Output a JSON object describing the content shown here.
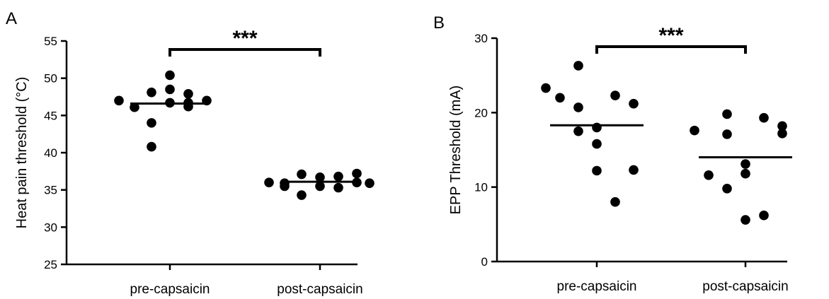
{
  "chart_data": [
    {
      "panel": "A",
      "type": "scatter",
      "ylabel": "Heat pain threshold (°C)",
      "ylim": [
        25,
        55
      ],
      "yticks": [
        25,
        30,
        35,
        40,
        45,
        50,
        55
      ],
      "categories": [
        "pre-capsaicin",
        "post-capsaicin"
      ],
      "series": [
        {
          "category": "pre-capsaicin",
          "mean": 46.6,
          "values": [
            47.0,
            46.1,
            48.1,
            46.7,
            44.0,
            40.8,
            50.4,
            48.5,
            46.7,
            47.9,
            46.2,
            47.0
          ]
        },
        {
          "category": "post-capsaicin",
          "mean": 36.1,
          "values": [
            36.0,
            35.9,
            35.5,
            37.1,
            34.3,
            36.7,
            35.5,
            36.8,
            35.3,
            36.0,
            37.2,
            35.9
          ]
        }
      ],
      "significance": "***",
      "grid": false
    },
    {
      "panel": "B",
      "type": "scatter",
      "ylabel": "EPP Threshold (mA)",
      "ylim": [
        0,
        30
      ],
      "yticks": [
        0,
        10,
        20,
        30
      ],
      "categories": [
        "pre-capsaicin",
        "post-capsaicin"
      ],
      "series": [
        {
          "category": "pre-capsaicin",
          "mean": 18.3,
          "values": [
            23.3,
            22.0,
            17.5,
            12.2,
            26.3,
            20.7,
            18.0,
            15.8,
            8.0,
            22.3,
            12.3,
            21.2
          ]
        },
        {
          "category": "post-capsaicin",
          "mean": 14.0,
          "values": [
            17.6,
            11.6,
            9.8,
            5.6,
            19.8,
            17.1,
            13.1,
            11.8,
            6.2,
            19.3,
            18.2,
            17.2
          ]
        }
      ],
      "significance": "***",
      "grid": false
    }
  ]
}
